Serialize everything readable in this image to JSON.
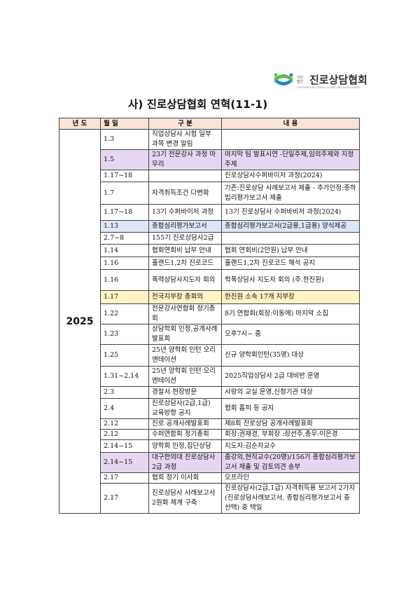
{
  "logo": {
    "small": "사단법인",
    "name": "진로상담협회",
    "sub": "CORPORATION CAREER COUNSELING ASSOCIATION"
  },
  "title": "사) 진로상담협회 연혁(11-1)",
  "headers": [
    "년 도",
    "월 일",
    "구 분",
    "내 용"
  ],
  "year": "2025",
  "rows": [
    {
      "date": "1.3",
      "category": "직업상담사 시험 일부 과목 변경 알림",
      "content": ""
    },
    {
      "date": "1.5",
      "category": "23기 전문강사 과정 마무리",
      "content": "마지막 팀 발표시연 -단일주제,임의주제와 지정주제",
      "highlight": "purple"
    },
    {
      "date": "1.17~18",
      "category": "",
      "content": "진로상담사수퍼바이저 과정(2024)"
    },
    {
      "date": "1.7",
      "category": "자격취득조건 다변화",
      "content": "기존:진로상담 사례보고서 제출 - 추가인정:종하빕리평가보고서 제출"
    },
    {
      "date": "1.17~18",
      "category": "13기 수퍼바이저 과정",
      "content": "13기 진로상담사 수퍼바비저 과정(2024)"
    },
    {
      "date": "1.13",
      "category": "종합심리평가보고서",
      "content": "종합심리평가보고서(2급용,1급용) 양식제공",
      "highlight": "blue"
    },
    {
      "date": "2.7~8",
      "category": "155기 진로상담사2급",
      "content": ""
    },
    {
      "date": "1.14",
      "category": "협회연회비 납부 안내",
      "content": "협회 연회비(2만원) 납부 안내"
    },
    {
      "date": "1.16",
      "category": "홀랜드1,2차 진로코드",
      "content": "홀랜드1,2차 진로코드 해석 공지"
    },
    {
      "date": "1.16",
      "category": "폭력상담사지도자 회의",
      "content": "학폭상담사 지도자 회의 (주.한진원)"
    },
    {
      "date": "1.17",
      "category": "전국지부장 총회의",
      "content": "한진원 소속 17개 지부장",
      "highlight": "yellow"
    },
    {
      "date": "1.22",
      "category": "전문강사연합회 정기총회",
      "content": "8기 연합회(회장:이동애) 마지막 소집"
    },
    {
      "date": "1.23",
      "category": "상담학회 인정,공개사례발표회",
      "content": "오후7시~ 줌"
    },
    {
      "date": "1.25",
      "category": "25년 양학회 인턴 오리엔테이션",
      "content": "신규 양학회인턴(35명) 대상"
    },
    {
      "date": "1.31~2.14",
      "category": "25년 양학회 인턴 오리엔테이션",
      "content": "2025직업상담사 2급 대비반 운영"
    },
    {
      "date": "2.3",
      "category": "경찰서 현장방문",
      "content": "사랑의 교실 운영,신청기관 대상"
    },
    {
      "date": "2.4",
      "category": "진로상담사(2급,1급) 교육방향 공지",
      "content": "협회 홈피 등 공지"
    },
    {
      "date": "2.12",
      "category": "진로 공개사례발표회",
      "content": "제8회 진로상담 공개사례발표회"
    },
    {
      "date": "2.12",
      "category": "수퍼연합회 정기총회",
      "content": "회장:권재경, 부회장 :장선주,총무:이은경"
    },
    {
      "date": "2.14~15",
      "category": "양학회 인정,집단상담",
      "content": "지도자:김순자교수"
    },
    {
      "date": "2.14~15",
      "category": "대구한의대 진로상담사2급 과정",
      "content": "줌강의,현직교수(20명)/156기 종합심리평가보고서 제출 및 검토의견 송부",
      "highlight": "purple"
    },
    {
      "date": "2.17",
      "category": "협회 정기 이사회",
      "content": "오프라인"
    },
    {
      "date": "2.17",
      "category": "진로상담사 사례보고서 2원화 체계 구축",
      "content": "진로상담사(2급,1급) 자격취득용 보고서 2가지(진로상담사례보고서, 종합심리평가보고서 중 선택) 중 택일"
    }
  ],
  "colors": {
    "header": "#fbe4d5",
    "purple": "#e6d7f0",
    "blue": "#dde7f5",
    "yellow": "#fff2c4"
  }
}
